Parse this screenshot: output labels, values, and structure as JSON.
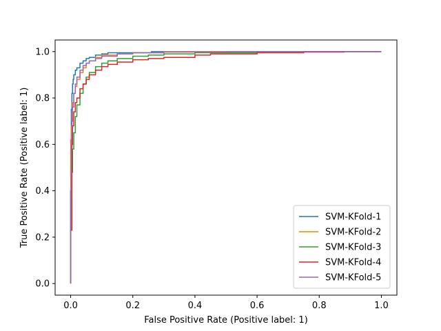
{
  "chart_data": {
    "type": "line",
    "title": "",
    "xlabel": "False Positive Rate (Positive label: 1)",
    "ylabel": "True Positive Rate (Positive label: 1)",
    "xlim": [
      -0.05,
      1.05
    ],
    "ylim": [
      -0.05,
      1.05
    ],
    "xticks": [
      "0.0",
      "0.2",
      "0.4",
      "0.6",
      "0.8",
      "1.0"
    ],
    "yticks": [
      "0.0",
      "0.2",
      "0.4",
      "0.6",
      "0.8",
      "1.0"
    ],
    "grid": false,
    "legend_position": "bottom-right",
    "series": [
      {
        "name": "SVM-KFold-1",
        "color": "#1f77b4",
        "x": [
          0,
          0,
          0.002,
          0.002,
          0.004,
          0.006,
          0.008,
          0.01,
          0.015,
          0.02,
          0.03,
          0.04,
          0.05,
          0.06,
          0.08,
          0.1,
          0.12,
          0.2,
          0.26,
          0.3,
          0.4,
          1.0
        ],
        "y": [
          0,
          0.4,
          0.62,
          0.75,
          0.82,
          0.86,
          0.88,
          0.9,
          0.92,
          0.93,
          0.95,
          0.96,
          0.97,
          0.975,
          0.985,
          0.99,
          0.995,
          0.995,
          1.0,
          1.0,
          1.0,
          1.0
        ]
      },
      {
        "name": "SVM-KFold-2",
        "color": "#ff7f0e",
        "x": [
          0,
          0,
          0.002,
          0.004,
          0.006,
          0.01,
          0.015,
          0.02,
          0.03,
          0.04,
          0.05,
          0.06,
          0.08,
          0.1,
          0.15,
          0.2,
          0.3,
          0.5,
          1.0
        ],
        "y": [
          0,
          0.62,
          0.68,
          0.74,
          0.78,
          0.82,
          0.85,
          0.88,
          0.91,
          0.93,
          0.95,
          0.96,
          0.975,
          0.985,
          0.99,
          0.995,
          1.0,
          1.0,
          1.0
        ]
      },
      {
        "name": "SVM-KFold-3",
        "color": "#2ca02c",
        "x": [
          0,
          0,
          0.004,
          0.006,
          0.01,
          0.015,
          0.02,
          0.03,
          0.04,
          0.05,
          0.06,
          0.08,
          0.1,
          0.12,
          0.15,
          0.2,
          0.25,
          0.3,
          0.4,
          0.5,
          0.6,
          0.7,
          0.8,
          1.0
        ],
        "y": [
          0,
          0.4,
          0.48,
          0.58,
          0.65,
          0.72,
          0.77,
          0.82,
          0.86,
          0.89,
          0.91,
          0.935,
          0.95,
          0.96,
          0.97,
          0.98,
          0.985,
          0.99,
          0.995,
          0.995,
          1.0,
          1.0,
          1.0,
          1.0
        ]
      },
      {
        "name": "SVM-KFold-4",
        "color": "#d62728",
        "x": [
          0,
          0.004,
          0.004,
          0.006,
          0.01,
          0.015,
          0.02,
          0.03,
          0.04,
          0.05,
          0.06,
          0.08,
          0.1,
          0.12,
          0.15,
          0.2,
          0.25,
          0.3,
          0.4,
          0.45,
          0.6,
          0.75,
          0.88,
          1.0
        ],
        "y": [
          0.23,
          0.23,
          0.6,
          0.68,
          0.74,
          0.78,
          0.8,
          0.84,
          0.86,
          0.88,
          0.9,
          0.92,
          0.935,
          0.945,
          0.955,
          0.965,
          0.97,
          0.975,
          0.985,
          0.99,
          0.995,
          0.998,
          1.0,
          1.0
        ]
      },
      {
        "name": "SVM-KFold-5",
        "color": "#9467bd",
        "x": [
          0,
          0,
          0.002,
          0.004,
          0.006,
          0.01,
          0.015,
          0.02,
          0.03,
          0.04,
          0.05,
          0.06,
          0.08,
          0.1,
          0.15,
          0.2,
          0.3,
          0.5,
          0.75,
          1.0
        ],
        "y": [
          0,
          0.4,
          0.62,
          0.7,
          0.76,
          0.82,
          0.86,
          0.89,
          0.92,
          0.94,
          0.95,
          0.96,
          0.97,
          0.98,
          0.99,
          0.995,
          0.998,
          1.0,
          1.0,
          1.0
        ]
      }
    ]
  }
}
